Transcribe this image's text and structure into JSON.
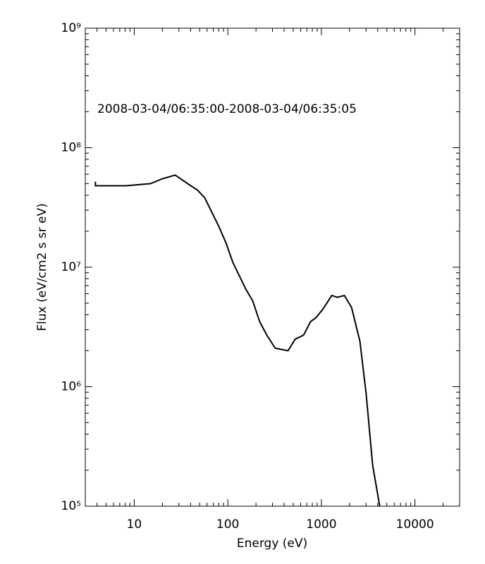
{
  "chart_data": {
    "type": "line",
    "annotation": "2008-03-04/06:35:00-2008-03-04/06:35:05",
    "xlabel": "Energy (eV)",
    "ylabel": "Flux (eV/cm2 s sr eV)",
    "xscale": "log",
    "yscale": "log",
    "xlim": [
      3,
      30000
    ],
    "ylim": [
      100000,
      1000000000
    ],
    "xticks": [
      10,
      100,
      1000,
      10000
    ],
    "yticks": [
      {
        "value": 100000,
        "label": "10⁵"
      },
      {
        "value": 1000000,
        "label": "10⁶"
      },
      {
        "value": 10000000,
        "label": "10⁷"
      },
      {
        "value": 100000000,
        "label": "10⁸"
      },
      {
        "value": 1000000000,
        "label": "10⁹"
      }
    ],
    "series": [
      {
        "color": "#000000",
        "x": [
          3.85,
          3.85,
          8.1,
          14.9,
          20,
          27.4,
          38.7,
          47.7,
          56.7,
          80,
          95.5,
          113,
          155,
          185,
          219,
          261,
          321,
          440,
          525,
          645,
          766,
          880,
          1047,
          1290,
          1480,
          1760,
          2100,
          2580,
          3000,
          3530,
          4200
        ],
        "values": [
          52000000,
          48000000,
          48000000,
          50000000,
          55000000,
          59000000,
          49000000,
          44000000,
          38000000,
          22000000,
          16000000,
          11000000,
          6600000,
          5200000,
          3500000,
          2700000,
          2100000,
          2000000,
          2500000,
          2700000,
          3500000,
          3800000,
          4500000,
          5800000,
          5600000,
          5800000,
          4600000,
          2400000,
          890000,
          220000,
          100000
        ]
      }
    ]
  }
}
